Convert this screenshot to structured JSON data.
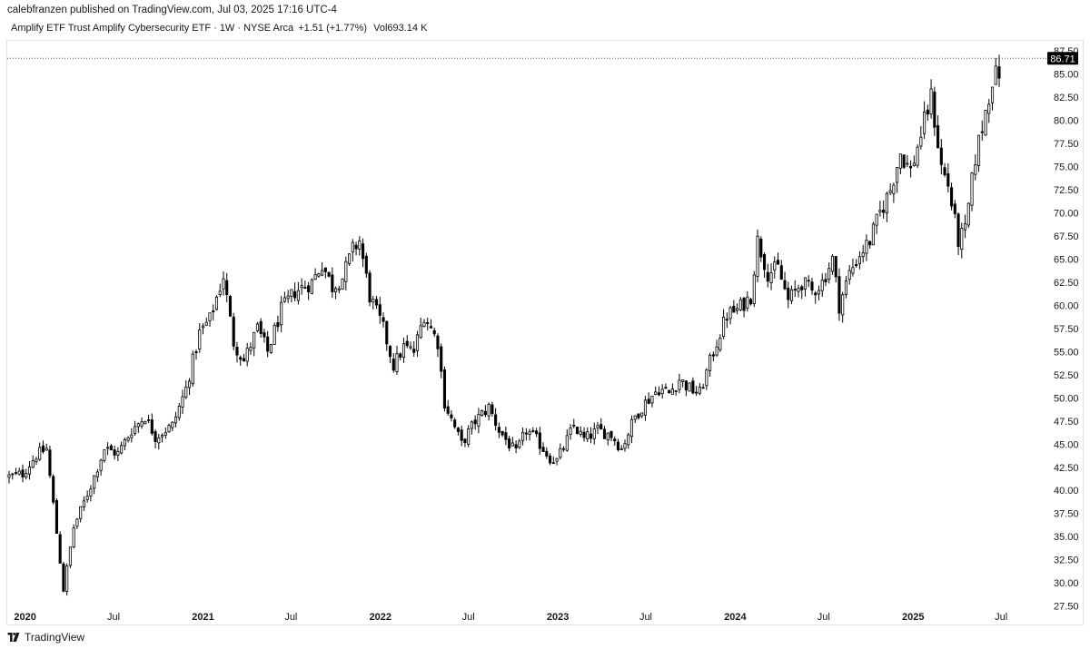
{
  "header": {
    "publisher": "calebfranzen published on TradingView.com, Jul 03, 2025 17:16 UTC-4",
    "symbol_description": "Amplify ETF Trust Amplify Cybersecurity ETF · 1W · NYSE Arca",
    "change": "+1.51 (+1.77%)",
    "volume_label": "Vol",
    "volume_value": "693.14 K"
  },
  "footer": {
    "brand": "TradingView"
  },
  "colors": {
    "candle_up": "#ffffff",
    "candle_down": "#000000",
    "wick": "#000000",
    "last_price_bg": "#000000",
    "last_price_line": "#555555"
  },
  "chart_data": {
    "type": "candlestick",
    "interval": "1W",
    "y_axis": {
      "ticks": [
        "27.50",
        "30.00",
        "32.50",
        "35.00",
        "37.50",
        "40.00",
        "42.50",
        "45.00",
        "47.50",
        "50.00",
        "52.50",
        "55.00",
        "57.50",
        "60.00",
        "62.50",
        "65.00",
        "67.50",
        "70.00",
        "72.50",
        "75.00",
        "77.50",
        "80.00",
        "82.50",
        "85.00",
        "87.50"
      ],
      "range": [
        25.5,
        88.6
      ]
    },
    "x_axis": {
      "ticks": [
        {
          "label": "2020",
          "date": "2020-01-01",
          "bold": true
        },
        {
          "label": "Jul",
          "date": "2020-07-01",
          "bold": false
        },
        {
          "label": "2021",
          "date": "2021-01-01",
          "bold": true
        },
        {
          "label": "Jul",
          "date": "2021-07-01",
          "bold": false
        },
        {
          "label": "2022",
          "date": "2022-01-01",
          "bold": true
        },
        {
          "label": "Jul",
          "date": "2022-07-01",
          "bold": false
        },
        {
          "label": "2023",
          "date": "2023-01-01",
          "bold": true
        },
        {
          "label": "Jul",
          "date": "2023-07-01",
          "bold": false
        },
        {
          "label": "2024",
          "date": "2024-01-01",
          "bold": true
        },
        {
          "label": "Jul",
          "date": "2024-07-01",
          "bold": false
        },
        {
          "label": "2025",
          "date": "2025-01-01",
          "bold": true
        },
        {
          "label": "Jul",
          "date": "2025-07-01",
          "bold": false
        }
      ]
    },
    "last_price": "86.71",
    "path_points": [
      [
        "2019-11-29",
        41.5
      ],
      [
        "2019-12-27",
        41.8
      ],
      [
        "2020-01-24",
        43.8
      ],
      [
        "2020-02-14",
        44.5
      ],
      [
        "2020-02-28",
        38.5
      ],
      [
        "2020-03-20",
        29.3
      ],
      [
        "2020-04-10",
        36.0
      ],
      [
        "2020-05-15",
        40.5
      ],
      [
        "2020-06-12",
        44.5
      ],
      [
        "2020-07-10",
        44.0
      ],
      [
        "2020-08-07",
        46.5
      ],
      [
        "2020-09-04",
        48.0
      ],
      [
        "2020-09-25",
        45.8
      ],
      [
        "2020-10-30",
        47.0
      ],
      [
        "2020-11-27",
        51.0
      ],
      [
        "2020-12-25",
        57.0
      ],
      [
        "2021-01-15",
        58.5
      ],
      [
        "2021-02-12",
        63.2
      ],
      [
        "2021-03-05",
        56.0
      ],
      [
        "2021-03-26",
        54.0
      ],
      [
        "2021-04-23",
        57.5
      ],
      [
        "2021-05-14",
        55.0
      ],
      [
        "2021-06-11",
        59.5
      ],
      [
        "2021-07-09",
        61.5
      ],
      [
        "2021-08-13",
        62.5
      ],
      [
        "2021-09-03",
        64.5
      ],
      [
        "2021-09-24",
        62.0
      ],
      [
        "2021-10-15",
        63.0
      ],
      [
        "2021-11-05",
        66.0
      ],
      [
        "2021-11-19",
        67.0
      ],
      [
        "2021-12-10",
        61.0
      ],
      [
        "2022-01-07",
        57.5
      ],
      [
        "2022-01-28",
        53.5
      ],
      [
        "2022-02-18",
        55.5
      ],
      [
        "2022-03-11",
        55.0
      ],
      [
        "2022-04-01",
        59.0
      ],
      [
        "2022-04-29",
        56.0
      ],
      [
        "2022-05-13",
        49.5
      ],
      [
        "2022-06-17",
        45.0
      ],
      [
        "2022-07-15",
        47.5
      ],
      [
        "2022-08-12",
        49.0
      ],
      [
        "2022-09-02",
        46.5
      ],
      [
        "2022-09-23",
        45.0
      ],
      [
        "2022-10-07",
        44.0
      ],
      [
        "2022-10-28",
        46.5
      ],
      [
        "2022-11-18",
        45.5
      ],
      [
        "2022-12-16",
        43.5
      ],
      [
        "2022-12-30",
        43.2
      ],
      [
        "2023-02-03",
        47.0
      ],
      [
        "2023-02-24",
        45.5
      ],
      [
        "2023-03-24",
        46.5
      ],
      [
        "2023-04-21",
        46.0
      ],
      [
        "2023-05-12",
        44.5
      ],
      [
        "2023-06-09",
        48.0
      ],
      [
        "2023-06-30",
        49.5
      ],
      [
        "2023-07-28",
        51.0
      ],
      [
        "2023-08-18",
        50.5
      ],
      [
        "2023-09-08",
        52.0
      ],
      [
        "2023-09-29",
        51.0
      ],
      [
        "2023-10-20",
        50.5
      ],
      [
        "2023-11-17",
        55.0
      ],
      [
        "2023-12-15",
        59.0
      ],
      [
        "2024-01-05",
        59.5
      ],
      [
        "2024-02-02",
        61.0
      ],
      [
        "2024-02-16",
        67.0
      ],
      [
        "2024-03-08",
        63.5
      ],
      [
        "2024-03-29",
        64.0
      ],
      [
        "2024-04-19",
        60.5
      ],
      [
        "2024-05-17",
        62.5
      ],
      [
        "2024-06-07",
        61.5
      ],
      [
        "2024-06-28",
        62.5
      ],
      [
        "2024-07-19",
        65.0
      ],
      [
        "2024-08-02",
        60.0
      ],
      [
        "2024-08-23",
        63.5
      ],
      [
        "2024-09-13",
        65.5
      ],
      [
        "2024-10-04",
        67.0
      ],
      [
        "2024-10-25",
        70.0
      ],
      [
        "2024-11-15",
        72.5
      ],
      [
        "2024-12-06",
        76.5
      ],
      [
        "2024-12-27",
        74.5
      ],
      [
        "2025-01-17",
        78.5
      ],
      [
        "2025-02-07",
        82.5
      ],
      [
        "2025-02-28",
        75.0
      ],
      [
        "2025-03-14",
        73.0
      ],
      [
        "2025-04-04",
        67.0
      ],
      [
        "2025-04-18",
        68.0
      ],
      [
        "2025-05-09",
        76.0
      ],
      [
        "2025-05-30",
        81.0
      ],
      [
        "2025-06-13",
        84.5
      ],
      [
        "2025-06-27",
        85.2
      ]
    ]
  }
}
